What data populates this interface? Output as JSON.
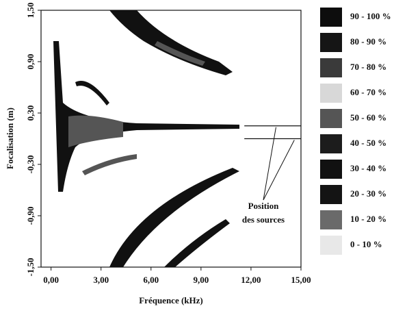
{
  "chart_data": {
    "type": "heatmap",
    "xlabel": "Fréquence (kHz)",
    "ylabel": "Focalisation (m)",
    "xlim": [
      -0.6,
      15
    ],
    "ylim": [
      -1.5,
      1.5
    ],
    "xticks": [
      {
        "value": 0,
        "label": "0,00"
      },
      {
        "value": 3,
        "label": "3,00"
      },
      {
        "value": 6,
        "label": "6,00"
      },
      {
        "value": 9,
        "label": "9,00"
      },
      {
        "value": 12,
        "label": "12,00"
      },
      {
        "value": 15,
        "label": "15,00"
      }
    ],
    "yticks": [
      {
        "value": -1.5,
        "label": "-1,50"
      },
      {
        "value": -0.9,
        "label": "-0,90"
      },
      {
        "value": -0.3,
        "label": "-0,30"
      },
      {
        "value": 0.3,
        "label": "0,30"
      },
      {
        "value": 0.9,
        "label": "0,90"
      },
      {
        "value": 1.5,
        "label": "1,50"
      }
    ],
    "legend": [
      {
        "label": "90 - 100 %",
        "color": "#0d0d0d"
      },
      {
        "label": "80 - 90 %",
        "color": "#151515"
      },
      {
        "label": "70 - 80 %",
        "color": "#3a3a3a"
      },
      {
        "label": "60 - 70 %",
        "color": "#d8d8d8"
      },
      {
        "label": "50 - 60 %",
        "color": "#555555"
      },
      {
        "label": "40 - 50 %",
        "color": "#1c1c1c"
      },
      {
        "label": "30 - 40 %",
        "color": "#111111"
      },
      {
        "label": "20 - 30 %",
        "color": "#141414"
      },
      {
        "label": "10 - 20 %",
        "color": "#6a6a6a"
      },
      {
        "label": "0 - 10 %",
        "color": "#e8e8e8"
      }
    ],
    "sources": [
      0.15,
      0
    ],
    "annotation": [
      "Position",
      "des sources"
    ]
  }
}
